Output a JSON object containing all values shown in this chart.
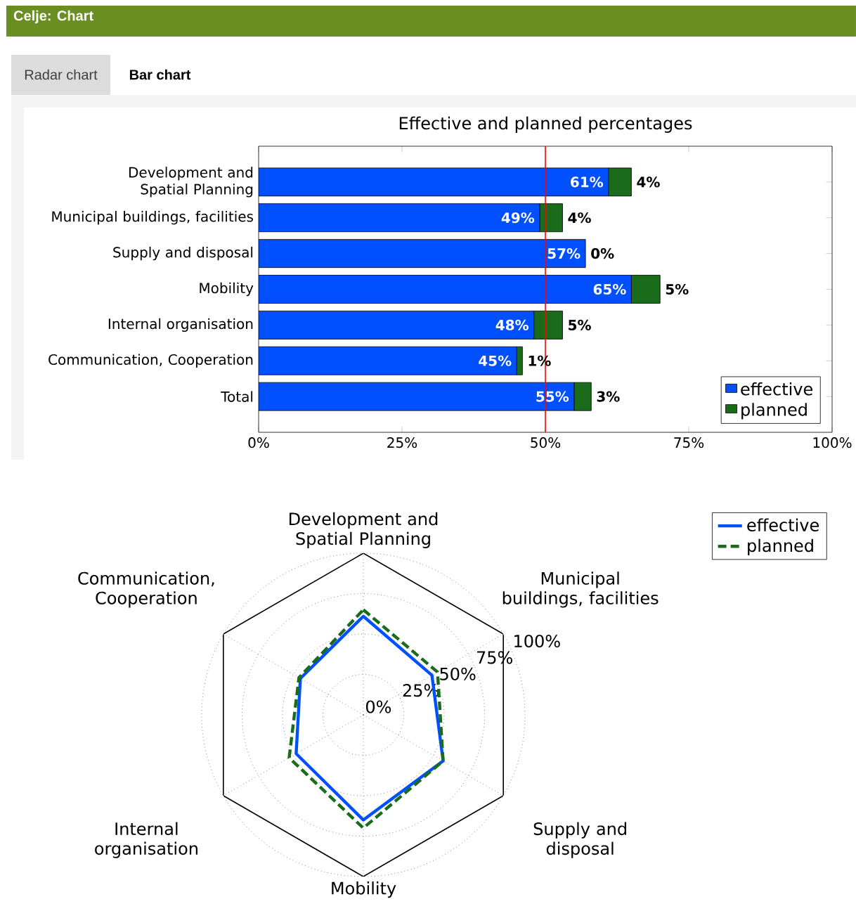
{
  "chart_data": [
    {
      "type": "other",
      "title": "Celje: Chart",
      "annotations": [
        "Radar chart",
        "Bar chart"
      ]
    },
    {
      "type": "bar",
      "title": "Effective and planned percentages",
      "orientation": "horizontal",
      "stacked": true,
      "categories": [
        "Development and Spatial Planning",
        "Municipal buildings, facilities",
        "Supply and disposal",
        "Mobility",
        "Internal organisation",
        "Communication, Cooperation",
        "Total"
      ],
      "series": [
        {
          "name": "effective",
          "color": "#0050ff",
          "values": [
            61,
            49,
            57,
            65,
            48,
            45,
            55
          ],
          "value_labels": [
            "61%",
            "49%",
            "57%",
            "65%",
            "48%",
            "45%",
            "55%"
          ]
        },
        {
          "name": "planned",
          "color": "#1a6b1a",
          "values": [
            4,
            4,
            0,
            5,
            5,
            1,
            3
          ],
          "value_labels": [
            "4%",
            "4%",
            "0%",
            "5%",
            "5%",
            "1%",
            "3%"
          ]
        }
      ],
      "xlim": [
        0,
        100
      ],
      "xticks": [
        {
          "value": 0,
          "label": "0%"
        },
        {
          "value": 25,
          "label": "25%"
        },
        {
          "value": 50,
          "label": "50%"
        },
        {
          "value": 75,
          "label": "75%"
        },
        {
          "value": 100,
          "label": "100%"
        }
      ],
      "ref_lines": [
        {
          "axis": "x",
          "value": 50,
          "color": "#ff0000"
        }
      ],
      "legend": "bottom right"
    },
    {
      "type": "radar",
      "categories": [
        "Development and Spatial Planning",
        "Municipal buildings, facilities",
        "Supply and disposal",
        "Mobility",
        "Internal organisation",
        "Communication, Cooperation"
      ],
      "series": [
        {
          "name": "effective",
          "color": "#0050ff",
          "line_style": "solid",
          "values": [
            61,
            49,
            57,
            65,
            48,
            45
          ]
        },
        {
          "name": "planned",
          "color": "#1a6b1a",
          "line_style": "dashed",
          "values": [
            65,
            53,
            57,
            70,
            53,
            46
          ]
        }
      ],
      "ylim": [
        0,
        100
      ],
      "yticks": [
        {
          "value": 0,
          "label": "0%"
        },
        {
          "value": 25,
          "label": "25%"
        },
        {
          "value": 50,
          "label": "50%"
        },
        {
          "value": 75,
          "label": "75%"
        },
        {
          "value": 100,
          "label": "100%"
        }
      ],
      "grid": true,
      "legend": "top right"
    }
  ]
}
